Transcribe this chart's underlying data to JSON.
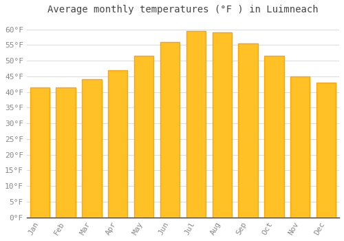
{
  "title": "Average monthly temperatures (°F ) in Luimneach",
  "months": [
    "Jan",
    "Feb",
    "Mar",
    "Apr",
    "May",
    "Jun",
    "Jul",
    "Aug",
    "Sep",
    "Oct",
    "Nov",
    "Dec"
  ],
  "values": [
    41.5,
    41.5,
    44,
    47,
    51.5,
    56,
    59.5,
    59,
    55.5,
    51.5,
    45,
    43
  ],
  "bar_color": "#FFC125",
  "bar_edge_color": "#FFA500",
  "background_color": "#FFFFFF",
  "grid_color": "#DDDDDD",
  "ylim": [
    0,
    63
  ],
  "yticks": [
    0,
    5,
    10,
    15,
    20,
    25,
    30,
    35,
    40,
    45,
    50,
    55,
    60
  ],
  "title_fontsize": 10,
  "tick_fontsize": 8,
  "tick_color": "#888888",
  "title_color": "#444444"
}
